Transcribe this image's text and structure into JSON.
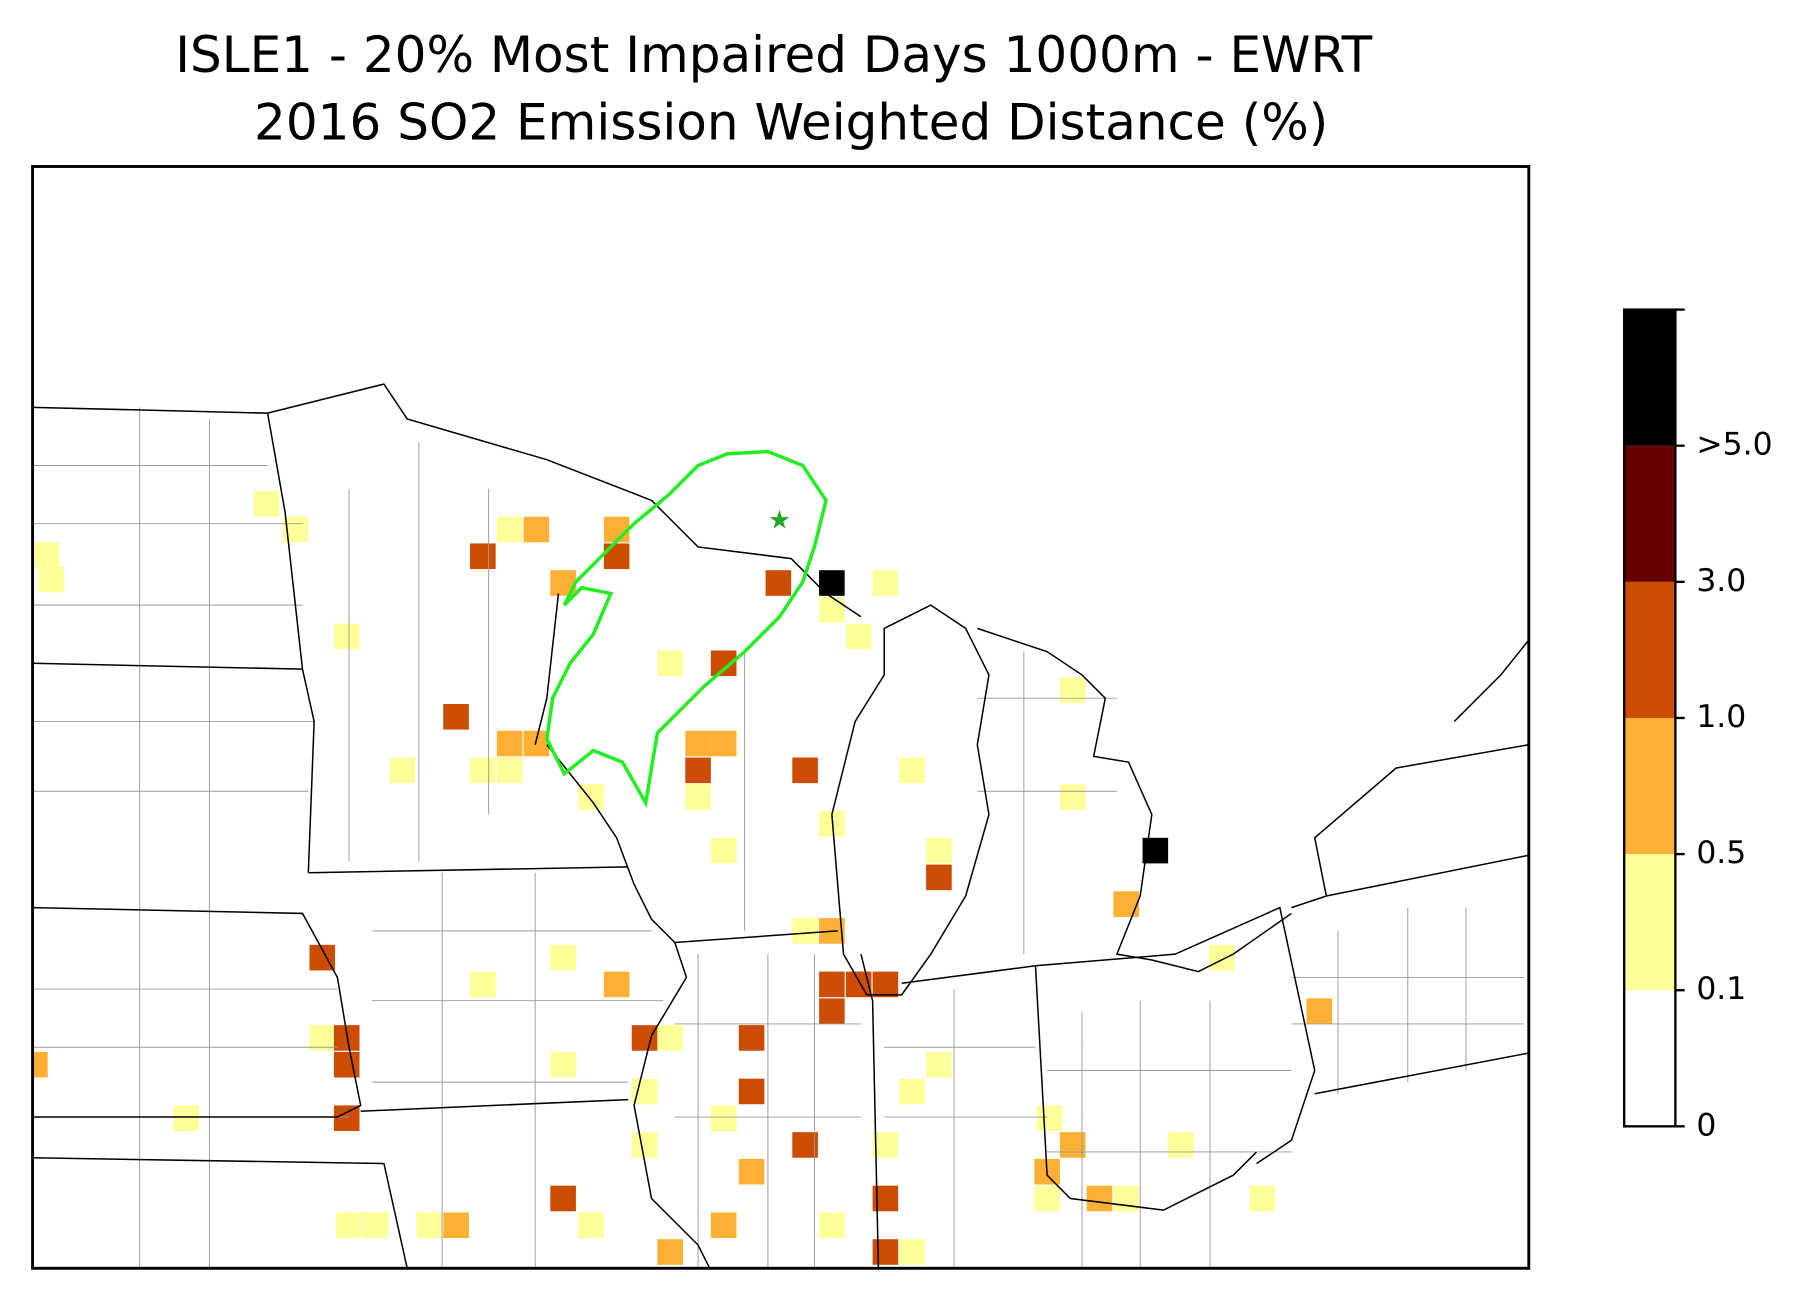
{
  "title": "ISLE1 - 20% Most Impaired Days 1000m - EWRT",
  "subtitle": "2016 SO2 Emission Weighted Distance (%)",
  "colorbar": {
    "ticks": [
      0,
      0.1,
      0.5,
      {
        "value": 1,
        "label": "1.0"
      },
      {
        "value": 3,
        "label": "3.0"
      },
      {
        "value": 5,
        "label": ">5.0"
      }
    ],
    "colors": [
      "#ffffff",
      "#ffff99",
      "#fdb034",
      "#cc4c02",
      "#660000",
      "#000000"
    ]
  }
}
